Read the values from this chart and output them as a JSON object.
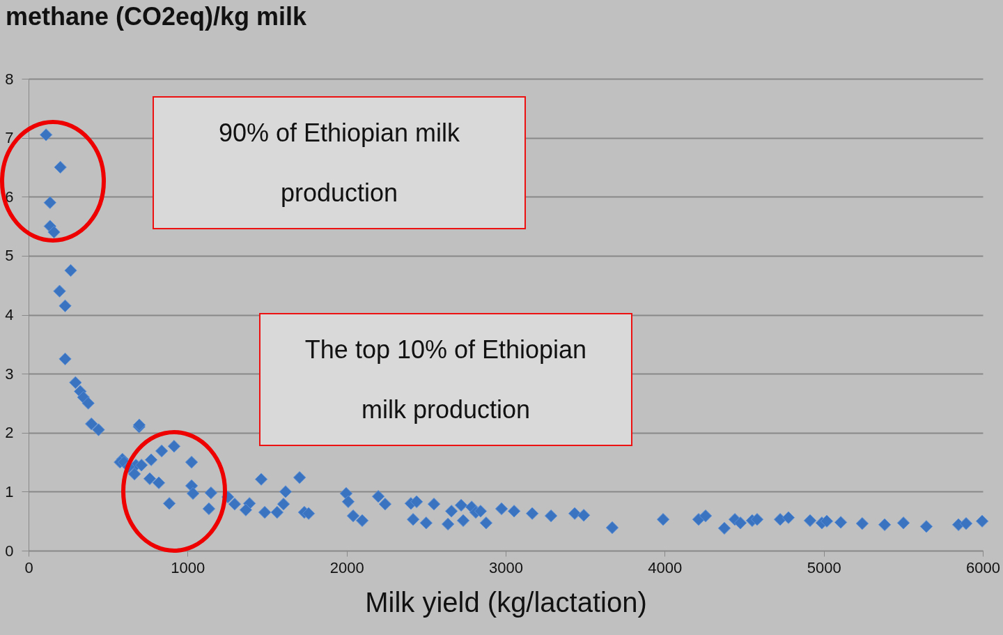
{
  "chart_data": {
    "type": "scatter",
    "title": "methane (CO2eq)/kg milk",
    "xlabel": "Milk yield (kg/lactation)",
    "annotations": [
      "90% of Ethiopian milk production",
      "The top 10% of Ethiopian milk production"
    ],
    "x": [
      110,
      200,
      135,
      135,
      160,
      265,
      195,
      230,
      230,
      295,
      325,
      345,
      375,
      395,
      440,
      695,
      590,
      575,
      675,
      600,
      696,
      837,
      915,
      771,
      710,
      666,
      762,
      819,
      885,
      1025,
      1025,
      1034,
      1147,
      1134,
      1253,
      1296,
      1389,
      1366,
      1463,
      1485,
      1563,
      1616,
      1603,
      1704,
      1734,
      1761,
      1997,
      2010,
      2041,
      2098,
      2199,
      2242,
      630,
      2404,
      2440,
      2418,
      2500,
      2549,
      2637,
      2659,
      2720,
      2733,
      2786,
      2812,
      2842,
      2877,
      2974,
      3053,
      3167,
      3285,
      3434,
      3491,
      3670,
      3990,
      4213,
      4257,
      4375,
      4441,
      4476,
      4550,
      4581,
      4726,
      4778,
      4914,
      4988,
      5019,
      5107,
      5242,
      5383,
      5501,
      5645,
      5847,
      5895,
      5996
    ],
    "series": [
      {
        "color": "#3a73c0",
        "values": [
          7.05,
          6.5,
          5.9,
          5.5,
          5.4,
          4.75,
          4.4,
          4.15,
          3.25,
          2.85,
          2.7,
          2.6,
          2.5,
          2.15,
          2.05,
          2.1,
          1.55,
          1.5,
          1.45,
          1.5,
          2.13,
          1.69,
          1.77,
          1.54,
          1.45,
          1.3,
          1.22,
          1.15,
          0.8,
          1.5,
          1.1,
          0.97,
          0.98,
          0.71,
          0.91,
          0.79,
          0.8,
          0.69,
          1.21,
          0.65,
          0.65,
          1.0,
          0.79,
          1.24,
          0.65,
          0.63,
          0.97,
          0.83,
          0.59,
          0.51,
          0.92,
          0.79,
          1.42,
          0.8,
          0.83,
          0.53,
          0.47,
          0.79,
          0.45,
          0.67,
          0.77,
          0.51,
          0.74,
          0.65,
          0.67,
          0.47,
          0.71,
          0.67,
          0.63,
          0.59,
          0.63,
          0.6,
          0.39,
          0.53,
          0.53,
          0.59,
          0.38,
          0.53,
          0.47,
          0.51,
          0.53,
          0.53,
          0.56,
          0.51,
          0.47,
          0.5,
          0.48,
          0.46,
          0.44,
          0.47,
          0.41,
          0.44,
          0.46,
          0.5
        ]
      }
    ],
    "xlim": [
      0,
      6000
    ],
    "xticks": [
      0,
      1000,
      2000,
      3000,
      4000,
      5000,
      6000
    ],
    "ylim": [
      0,
      8
    ],
    "yticks": [
      0,
      1,
      2,
      3,
      4,
      5,
      6,
      7,
      8
    ],
    "grid": "y",
    "marker": "diamond"
  }
}
